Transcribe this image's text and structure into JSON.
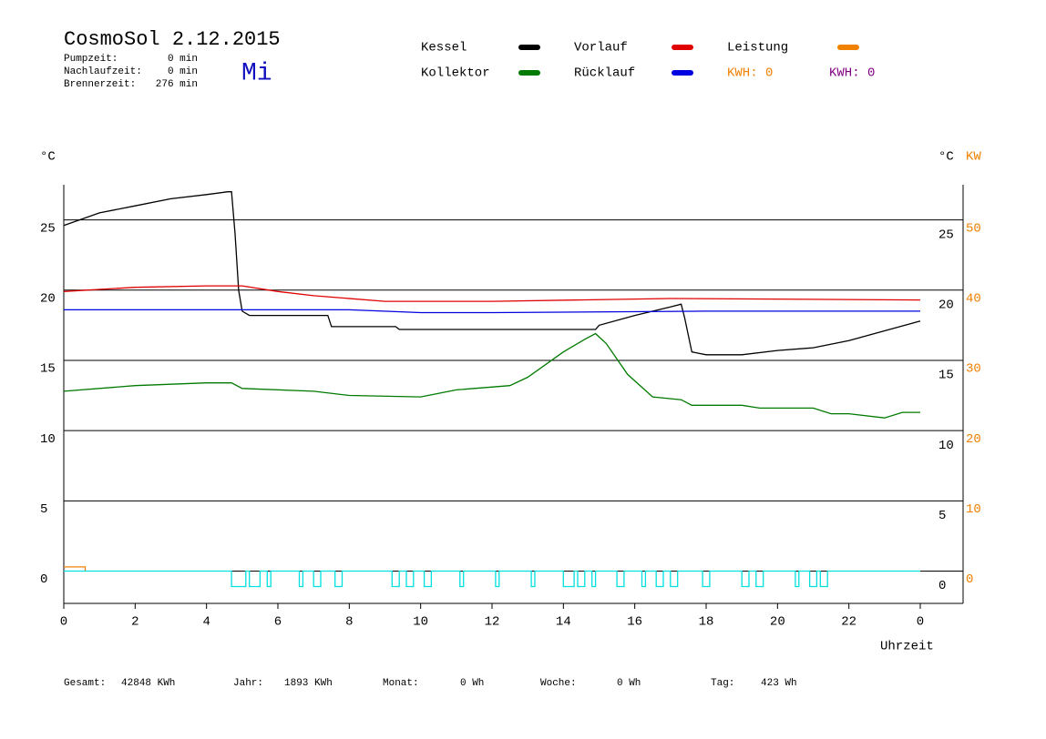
{
  "header": {
    "title": "CosmoSol 2.12.2015",
    "day": "Mi",
    "stats": [
      {
        "label": "Pumpzeit:",
        "value": "0 min"
      },
      {
        "label": "Nachlaufzeit:",
        "value": "0 min"
      },
      {
        "label": "Brennerzeit:",
        "value": "276 min"
      }
    ],
    "kwh": [
      "KWH: 0",
      "KWH: 0"
    ]
  },
  "footer": [
    {
      "label": "Gesamt:",
      "value": "42848 KWh"
    },
    {
      "label": "Jahr:",
      "value": "1893 KWh"
    },
    {
      "label": "Monat:",
      "value": "0 Wh"
    },
    {
      "label": "Woche:",
      "value": "0 Wh"
    },
    {
      "label": "Tag:",
      "value": "423 Wh"
    }
  ],
  "chart_data": {
    "type": "line",
    "ylabel": "°C",
    "y2label": "°C",
    "y2unit": "KW",
    "xlabel": "Uhrzeit",
    "xlim": [
      0,
      25.2
    ],
    "xticks": [
      0,
      2,
      4,
      6,
      8,
      10,
      12,
      14,
      16,
      18,
      20,
      22,
      {
        "value": 24,
        "label": "0"
      }
    ],
    "ylim": [
      -2.3,
      27.5
    ],
    "yticks": [
      0,
      5,
      10,
      15,
      20,
      25
    ],
    "y2lim": [
      -4.6,
      55
    ],
    "y2ticks": [
      0,
      10,
      20,
      30,
      40,
      50
    ],
    "grid": true,
    "series": [
      {
        "name": "Kessel",
        "color": "#000000",
        "x": [
          0,
          1,
          2,
          3,
          4,
          4.6,
          4.7,
          4.8,
          4.9,
          5.0,
          5.2,
          7.4,
          7.5,
          9.3,
          9.4,
          14.9,
          15,
          16,
          17,
          17.3,
          17.4,
          17.6,
          18,
          19,
          20,
          21,
          22,
          23,
          24
        ],
        "values": [
          24.6,
          25.5,
          26.0,
          26.5,
          26.8,
          27.0,
          27.0,
          24,
          20,
          18.5,
          18.2,
          18.2,
          17.4,
          17.4,
          17.2,
          17.2,
          17.5,
          18.2,
          18.8,
          19.0,
          18,
          15.6,
          15.4,
          15.4,
          15.7,
          15.9,
          16.4,
          17.1,
          17.8
        ]
      },
      {
        "name": "Kollektor",
        "color": "#007a00",
        "x": [
          0,
          2,
          4,
          4.7,
          5,
          7,
          8,
          10,
          11,
          12.5,
          13,
          14,
          14.6,
          14.9,
          15.2,
          15.8,
          16.5,
          17.3,
          17.6,
          19,
          19.5,
          21,
          21.5,
          22,
          23,
          23.5,
          24
        ],
        "values": [
          12.8,
          13.2,
          13.4,
          13.4,
          13,
          12.8,
          12.5,
          12.4,
          12.9,
          13.2,
          13.8,
          15.6,
          16.5,
          16.9,
          16.2,
          14,
          12.4,
          12.2,
          11.8,
          11.8,
          11.6,
          11.6,
          11.2,
          11.2,
          10.9,
          11.3,
          11.3
        ]
      },
      {
        "name": "Vorlauf",
        "color": "#e00000",
        "x": [
          0,
          2,
          4,
          5,
          6,
          7,
          9,
          12,
          17,
          24
        ],
        "values": [
          19.9,
          20.2,
          20.3,
          20.3,
          19.9,
          19.6,
          19.2,
          19.2,
          19.4,
          19.3
        ]
      },
      {
        "name": "Rücklauf",
        "color": "#0000e0",
        "x": [
          0,
          8,
          10,
          12,
          18,
          24
        ],
        "values": [
          18.6,
          18.6,
          18.4,
          18.4,
          18.5,
          18.5
        ]
      },
      {
        "name": "Leistung",
        "color": "#f08000",
        "axis": "y2",
        "x": [
          0,
          0.6,
          0.6
        ],
        "values": [
          0.6,
          0.6,
          0
        ]
      },
      {
        "color": "#00e0e0",
        "x": [
          0,
          4.7,
          4.7,
          5.1,
          5.1,
          5.2,
          5.2,
          5.5,
          5.5,
          5.7,
          5.7,
          5.8,
          5.8,
          6.6,
          6.6,
          6.7,
          6.7,
          7.0,
          7.0,
          7.2,
          7.2,
          7.6,
          7.6,
          7.8,
          7.8,
          9.2,
          9.2,
          9.4,
          9.4,
          9.6,
          9.6,
          9.8,
          9.8,
          10.1,
          10.1,
          10.3,
          10.3,
          11.1,
          11.1,
          11.2,
          11.2,
          12.1,
          12.1,
          12.2,
          12.2,
          13.1,
          13.1,
          13.2,
          13.2,
          14.0,
          14.0,
          14.3,
          14.3,
          14.4,
          14.4,
          14.6,
          14.6,
          14.8,
          14.8,
          14.9,
          14.9,
          15.5,
          15.5,
          15.7,
          15.7,
          16.2,
          16.2,
          16.3,
          16.3,
          16.6,
          16.6,
          16.8,
          16.8,
          17.0,
          17.0,
          17.2,
          17.2,
          17.9,
          17.9,
          18.1,
          18.1,
          19.0,
          19.0,
          19.2,
          19.2,
          19.4,
          19.4,
          19.6,
          19.6,
          20.5,
          20.5,
          20.6,
          20.6,
          20.9,
          20.9,
          21.1,
          21.1,
          21.2,
          21.2,
          21.4,
          21.4,
          24
        ],
        "values": [
          0,
          0,
          -1.1,
          -1.1,
          0,
          0,
          -1.1,
          -1.1,
          0,
          0,
          -1.1,
          -1.1,
          0,
          0,
          -1.1,
          -1.1,
          0,
          0,
          -1.1,
          -1.1,
          0,
          0,
          -1.1,
          -1.1,
          0,
          0,
          -1.1,
          -1.1,
          0,
          0,
          -1.1,
          -1.1,
          0,
          0,
          -1.1,
          -1.1,
          0,
          0,
          -1.1,
          -1.1,
          0,
          0,
          -1.1,
          -1.1,
          0,
          0,
          -1.1,
          -1.1,
          0,
          0,
          -1.1,
          -1.1,
          0,
          0,
          -1.1,
          -1.1,
          0,
          0,
          -1.1,
          -1.1,
          0,
          0,
          -1.1,
          -1.1,
          0,
          0,
          -1.1,
          -1.1,
          0,
          0,
          -1.1,
          -1.1,
          0,
          0,
          -1.1,
          -1.1,
          0,
          0,
          -1.1,
          -1.1,
          0,
          0,
          -1.1,
          -1.1,
          0,
          0,
          -1.1,
          -1.1,
          0,
          0,
          -1.1,
          -1.1,
          0,
          0,
          -1.1,
          -1.1,
          0,
          0,
          -1.1,
          -1.1,
          0,
          0
        ]
      }
    ]
  }
}
